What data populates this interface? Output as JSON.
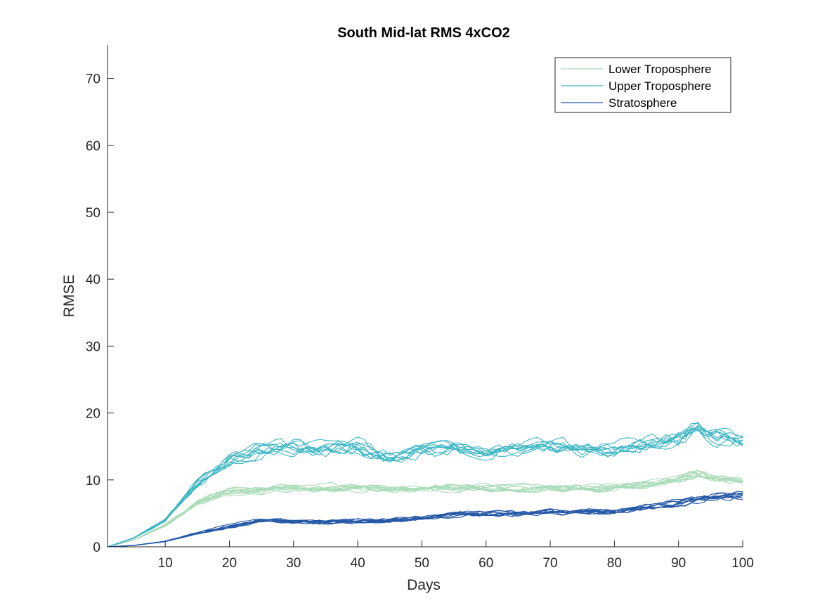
{
  "chart_data": {
    "type": "line",
    "title": "South Mid-lat RMS 4xCO2",
    "xlabel": "Days",
    "ylabel": "RMSE",
    "xlim": [
      1,
      100
    ],
    "ylim": [
      0,
      75
    ],
    "xticks": [
      10,
      20,
      30,
      40,
      50,
      60,
      70,
      80,
      90,
      100
    ],
    "yticks": [
      0,
      10,
      20,
      30,
      40,
      50,
      60,
      70
    ],
    "grid": false,
    "legend_position": "top-right",
    "ensemble_members_per_series": 10,
    "x": [
      1,
      5,
      10,
      15,
      20,
      25,
      30,
      35,
      40,
      45,
      50,
      55,
      60,
      65,
      70,
      75,
      80,
      85,
      90,
      93,
      95,
      100
    ],
    "series": [
      {
        "name": "Lower Troposphere",
        "color": "#a8dbb6",
        "values": [
          0,
          1.0,
          3.2,
          6.5,
          8.2,
          8.4,
          8.7,
          8.6,
          8.8,
          8.5,
          8.6,
          8.8,
          8.8,
          8.7,
          8.8,
          8.7,
          8.8,
          9.2,
          10.0,
          10.8,
          10.2,
          9.8
        ]
      },
      {
        "name": "Upper Troposphere",
        "color": "#3db5c4",
        "values": [
          0,
          1.3,
          4.0,
          9.5,
          13.0,
          14.8,
          15.0,
          14.6,
          15.2,
          13.5,
          14.4,
          15.0,
          14.5,
          14.8,
          15.2,
          14.4,
          14.6,
          15.4,
          16.0,
          18.0,
          16.5,
          15.8
        ]
      },
      {
        "name": "Stratosphere",
        "color": "#2458a6",
        "values": [
          0,
          0.2,
          0.8,
          2.0,
          3.0,
          3.9,
          3.7,
          3.6,
          3.8,
          3.9,
          4.2,
          4.8,
          4.9,
          4.9,
          5.2,
          5.1,
          5.2,
          5.7,
          6.4,
          7.0,
          7.3,
          7.6
        ]
      }
    ]
  }
}
